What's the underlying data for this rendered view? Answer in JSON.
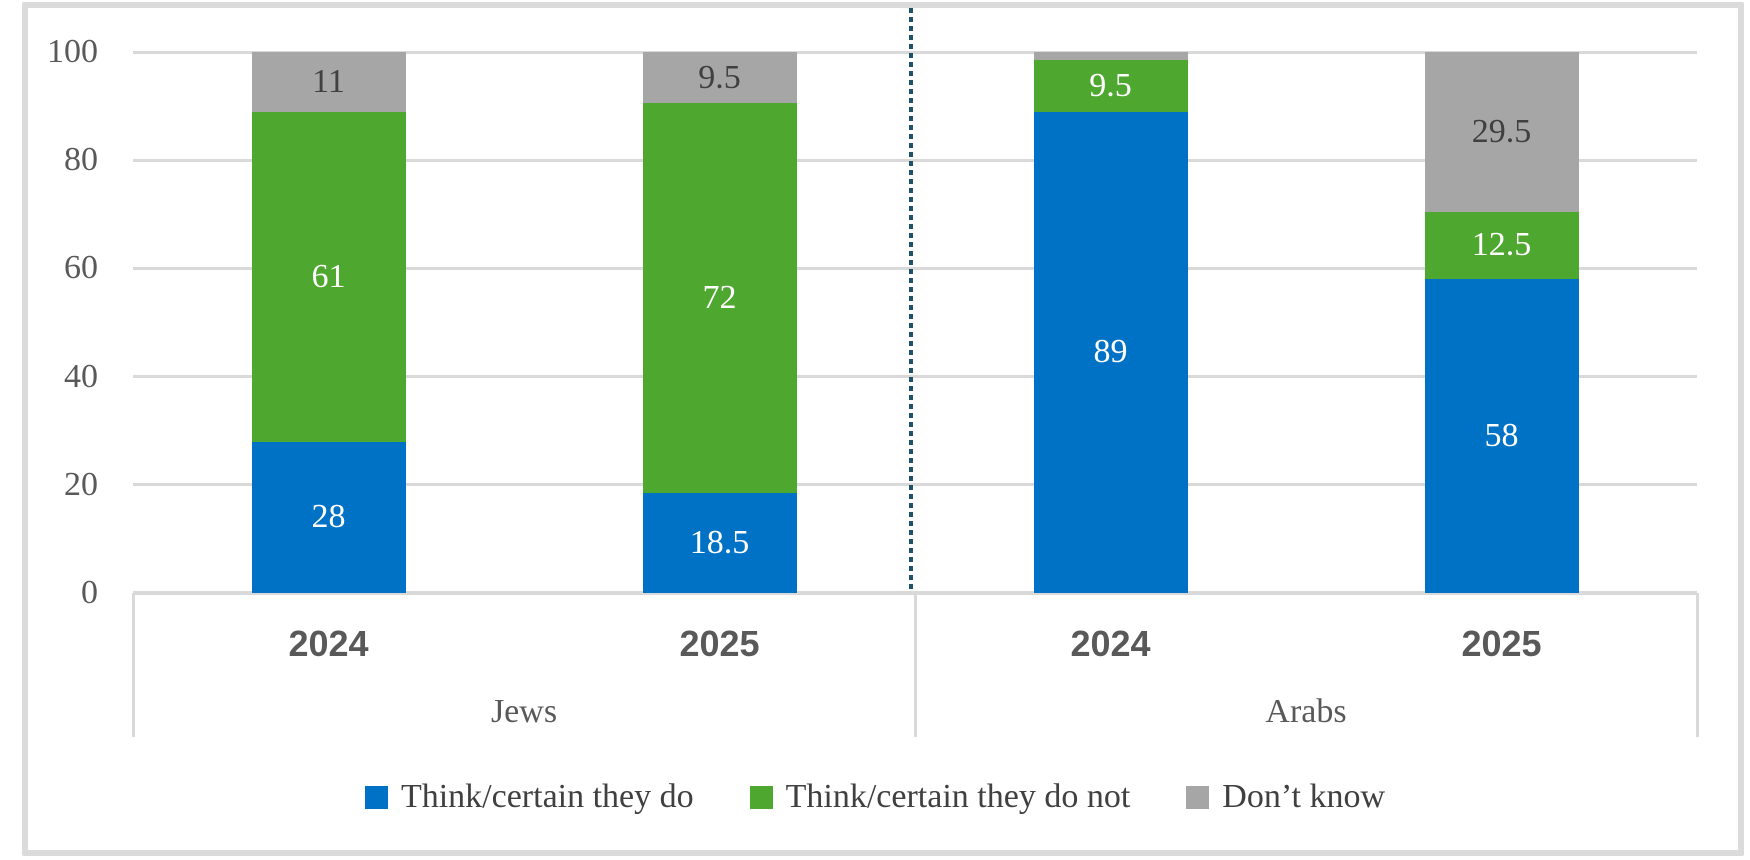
{
  "chart_data": {
    "type": "bar",
    "subtype": "stacked-percent",
    "y_axis": {
      "min": 0,
      "max": 100,
      "ticks": [
        0,
        20,
        40,
        60,
        80,
        100
      ]
    },
    "series": [
      {
        "name": "Think/certain they do",
        "color": "#0072C6",
        "label_color": "#FFFFFF"
      },
      {
        "name": "Think/certain they do not",
        "color": "#4EA72E",
        "label_color": "#FFFFFF"
      },
      {
        "name": "Don’t know",
        "color": "#A6A6A6",
        "label_color": "#404040"
      }
    ],
    "groups": [
      {
        "label": "Jews",
        "bars": [
          {
            "year": "2024",
            "values": [
              28,
              61,
              11
            ],
            "value_labels": [
              "28",
              "61",
              "11"
            ]
          },
          {
            "year": "2025",
            "values": [
              18.5,
              72,
              9.5
            ],
            "value_labels": [
              "18.5",
              "72",
              "9.5"
            ]
          }
        ]
      },
      {
        "label": "Arabs",
        "bars": [
          {
            "year": "2024",
            "values": [
              89,
              9.5,
              1.5
            ],
            "value_labels": [
              "89",
              "9.5",
              ""
            ]
          },
          {
            "year": "2025",
            "values": [
              58,
              12.5,
              29.5
            ],
            "value_labels": [
              "58",
              "12.5",
              "29.5"
            ]
          }
        ]
      }
    ],
    "legend_position": "bottom",
    "grid": true,
    "colors": {
      "gridline": "#D9D9D9",
      "axis_text": "#595959",
      "legend_text": "#404040",
      "panel_divider": "#1F5168",
      "frame_border": "#DBDBDB"
    }
  }
}
